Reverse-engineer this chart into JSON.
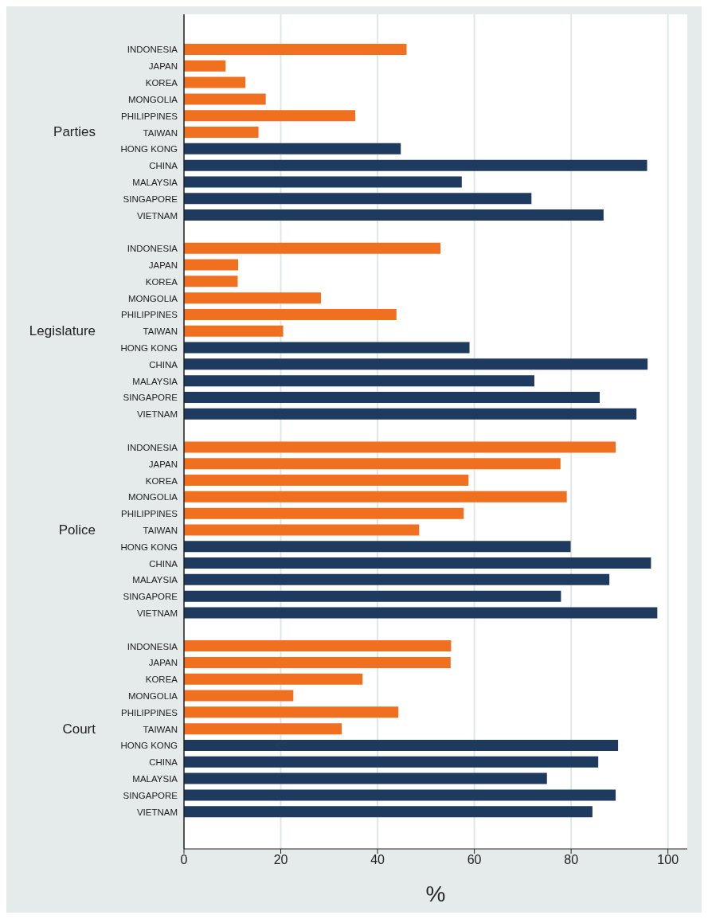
{
  "chart_data": {
    "type": "bar",
    "orientation": "horizontal",
    "xlabel": "%",
    "categories": [
      "INDONESIA",
      "JAPAN",
      "KOREA",
      "MONGOLIA",
      "PHILIPPINES",
      "TAIWAN",
      "HONG KONG",
      "CHINA",
      "MALAYSIA",
      "SINGAPORE",
      "VIETNAM",
      null,
      "INDONESIA",
      "JAPAN",
      "KOREA",
      "MONGOLIA",
      "PHILIPPINES",
      "TAIWAN",
      "HONG KONG",
      "CHINA",
      "MALAYSIA",
      "SINGAPORE",
      "VIETNAM",
      null,
      "INDONESIA",
      "JAPAN",
      "KOREA",
      "MONGOLIA",
      "PHILIPPINES",
      "TAIWAN",
      "HONG KONG",
      "CHINA",
      "MALAYSIA",
      "SINGAPORE",
      "VIETNAM",
      null,
      "INDONESIA",
      "JAPAN",
      "KOREA",
      "MONGOLIA",
      "PHILIPPINES",
      "TAIWAN",
      "HONG KONG",
      "CHINA",
      "MALAYSIA",
      "SINGAPORE",
      "VIETNAM"
    ],
    "values": [
      46.0,
      8.6,
      12.7,
      16.9,
      35.4,
      15.4,
      44.8,
      95.7,
      57.4,
      71.8,
      86.7,
      null,
      53.0,
      11.2,
      11.1,
      28.3,
      43.9,
      20.5,
      59.0,
      95.8,
      72.4,
      85.9,
      93.5,
      null,
      89.2,
      77.8,
      58.8,
      79.1,
      57.8,
      48.6,
      79.9,
      96.5,
      87.9,
      77.9,
      97.8,
      null,
      55.2,
      55.1,
      36.9,
      22.6,
      44.3,
      32.6,
      89.7,
      85.6,
      75.0,
      89.2,
      84.4
    ],
    "colors": [
      "#f07020",
      "#f07020",
      "#f07020",
      "#f07020",
      "#f07020",
      "#f07020",
      "#1e3a5f",
      "#1e3a5f",
      "#1e3a5f",
      "#1e3a5f",
      "#1e3a5f",
      null,
      "#f07020",
      "#f07020",
      "#f07020",
      "#f07020",
      "#f07020",
      "#f07020",
      "#1e3a5f",
      "#1e3a5f",
      "#1e3a5f",
      "#1e3a5f",
      "#1e3a5f",
      null,
      "#f07020",
      "#f07020",
      "#f07020",
      "#f07020",
      "#f07020",
      "#f07020",
      "#1e3a5f",
      "#1e3a5f",
      "#1e3a5f",
      "#1e3a5f",
      "#1e3a5f",
      null,
      "#f07020",
      "#f07020",
      "#f07020",
      "#f07020",
      "#f07020",
      "#f07020",
      "#1e3a5f",
      "#1e3a5f",
      "#1e3a5f",
      "#1e3a5f",
      "#1e3a5f"
    ],
    "annotations": [
      "Parties",
      "Legislature",
      "Police",
      "Court"
    ],
    "xlim": [
      0,
      104
    ],
    "xticks": [
      0,
      20,
      40,
      60,
      80,
      100
    ],
    "grid": "x"
  }
}
